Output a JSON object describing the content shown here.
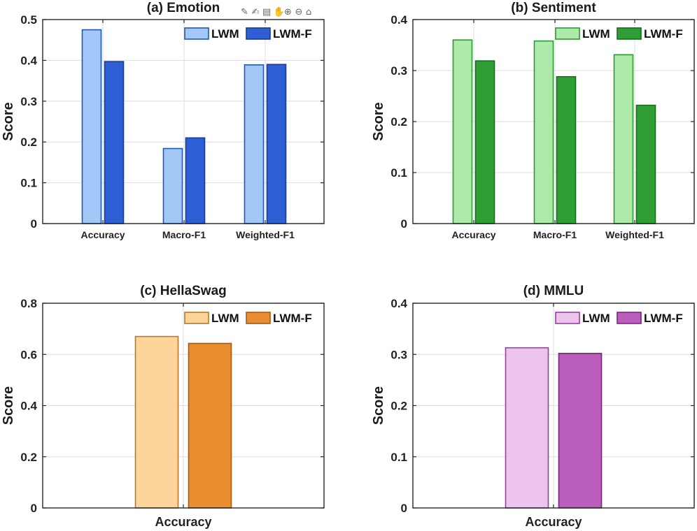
{
  "toolbar": {
    "icons": [
      "export-icon",
      "brush-icon",
      "datatip-icon",
      "pan-icon",
      "zoom-in-icon",
      "zoom-out-icon",
      "home-icon"
    ],
    "glyphs": [
      "✎",
      "✍",
      "▤",
      "✋",
      "⊕",
      "⊖",
      "⌂"
    ]
  },
  "chart_data": [
    {
      "id": "emotion",
      "type": "bar",
      "title": "(a) Emotion",
      "ylabel": "Score",
      "xlabel": "",
      "categories": [
        "Accuracy",
        "Macro-F1",
        "Weighted-F1"
      ],
      "series": [
        {
          "name": "LWM",
          "values": [
            0.475,
            0.184,
            0.389
          ],
          "fill": "#a3c8f7",
          "stroke": "#1f57b5"
        },
        {
          "name": "LWM-F",
          "values": [
            0.397,
            0.21,
            0.39
          ],
          "fill": "#2e5fd4",
          "stroke": "#1a3a94"
        }
      ],
      "ylim": [
        0,
        0.5
      ],
      "yticks": [
        0,
        0.1,
        0.2,
        0.3,
        0.4,
        0.5
      ],
      "ytick_labels": [
        "0",
        "0.1",
        "0.2",
        "0.3",
        "0.4",
        "0.5"
      ],
      "grid": true,
      "legend": "top-right"
    },
    {
      "id": "sentiment",
      "type": "bar",
      "title": "(b) Sentiment",
      "ylabel": "Score",
      "xlabel": "",
      "categories": [
        "Accuracy",
        "Macro-F1",
        "Weighted-F1"
      ],
      "series": [
        {
          "name": "LWM",
          "values": [
            0.36,
            0.358,
            0.331
          ],
          "fill": "#aeeaaa",
          "stroke": "#2a9a33"
        },
        {
          "name": "LWM-F",
          "values": [
            0.319,
            0.288,
            0.232
          ],
          "fill": "#2f9e35",
          "stroke": "#1c6b22"
        }
      ],
      "ylim": [
        0,
        0.4
      ],
      "yticks": [
        0,
        0.1,
        0.2,
        0.3,
        0.4
      ],
      "ytick_labels": [
        "0",
        "0.1",
        "0.2",
        "0.3",
        "0.4"
      ],
      "grid": true,
      "legend": "top-right"
    },
    {
      "id": "hellaswag",
      "type": "bar",
      "title": "(c) HellaSwag",
      "ylabel": "Score",
      "xlabel": "",
      "categories": [
        "Accuracy"
      ],
      "series": [
        {
          "name": "LWM",
          "values": [
            0.67
          ],
          "fill": "#fdd59b",
          "stroke": "#b7782a"
        },
        {
          "name": "LWM-F",
          "values": [
            0.643
          ],
          "fill": "#e88e30",
          "stroke": "#a45a14"
        }
      ],
      "ylim": [
        0,
        0.8
      ],
      "yticks": [
        0,
        0.2,
        0.4,
        0.6,
        0.8
      ],
      "ytick_labels": [
        "0",
        "0.2",
        "0.4",
        "0.6",
        "0.8"
      ],
      "grid": true,
      "legend": "top-right"
    },
    {
      "id": "mmlu",
      "type": "bar",
      "title": "(d) MMLU",
      "ylabel": "Score",
      "xlabel": "",
      "categories": [
        "Accuracy"
      ],
      "series": [
        {
          "name": "LWM",
          "values": [
            0.313
          ],
          "fill": "#edc4ec",
          "stroke": "#9a3fa6"
        },
        {
          "name": "LWM-F",
          "values": [
            0.302
          ],
          "fill": "#bb5dba",
          "stroke": "#7a2680"
        }
      ],
      "ylim": [
        0,
        0.4
      ],
      "yticks": [
        0,
        0.1,
        0.2,
        0.3,
        0.4
      ],
      "ytick_labels": [
        "0",
        "0.1",
        "0.2",
        "0.3",
        "0.4"
      ],
      "grid": true,
      "legend": "top-right"
    }
  ]
}
